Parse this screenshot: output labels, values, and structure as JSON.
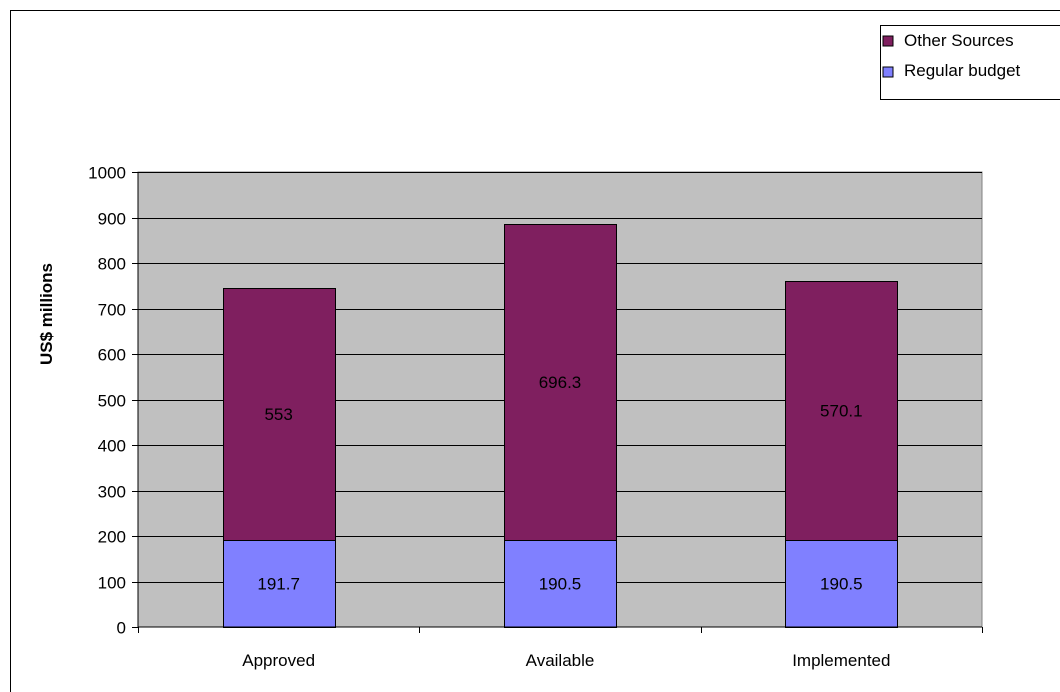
{
  "chart_data": {
    "type": "bar",
    "stacked": true,
    "title": "",
    "xlabel": "",
    "ylabel": "US$ millions",
    "ylim": [
      0,
      1000
    ],
    "y_ticks": [
      0,
      100,
      200,
      300,
      400,
      500,
      600,
      700,
      800,
      900,
      1000
    ],
    "y_tick_labels": [
      "0",
      "100",
      "200",
      "300",
      "400",
      "500",
      "600",
      "700",
      "800",
      "900",
      "1000"
    ],
    "grid": true,
    "legend_position": "top-right",
    "categories": [
      "Approved",
      "Available",
      "Implemented"
    ],
    "series": [
      {
        "name": "Regular budget",
        "color": "#8080FF",
        "values": [
          191.7,
          190.5,
          190.5
        ],
        "labels": [
          "191.7",
          "190.5",
          "190.5"
        ]
      },
      {
        "name": "Other Sources",
        "color": "#7F1F5F",
        "values": [
          553,
          696.3,
          570.1
        ],
        "labels": [
          "553",
          "696.3",
          "570.1"
        ]
      }
    ],
    "legend_order": [
      "Other Sources",
      "Regular budget"
    ],
    "plot_background": "#C0C0C0"
  }
}
